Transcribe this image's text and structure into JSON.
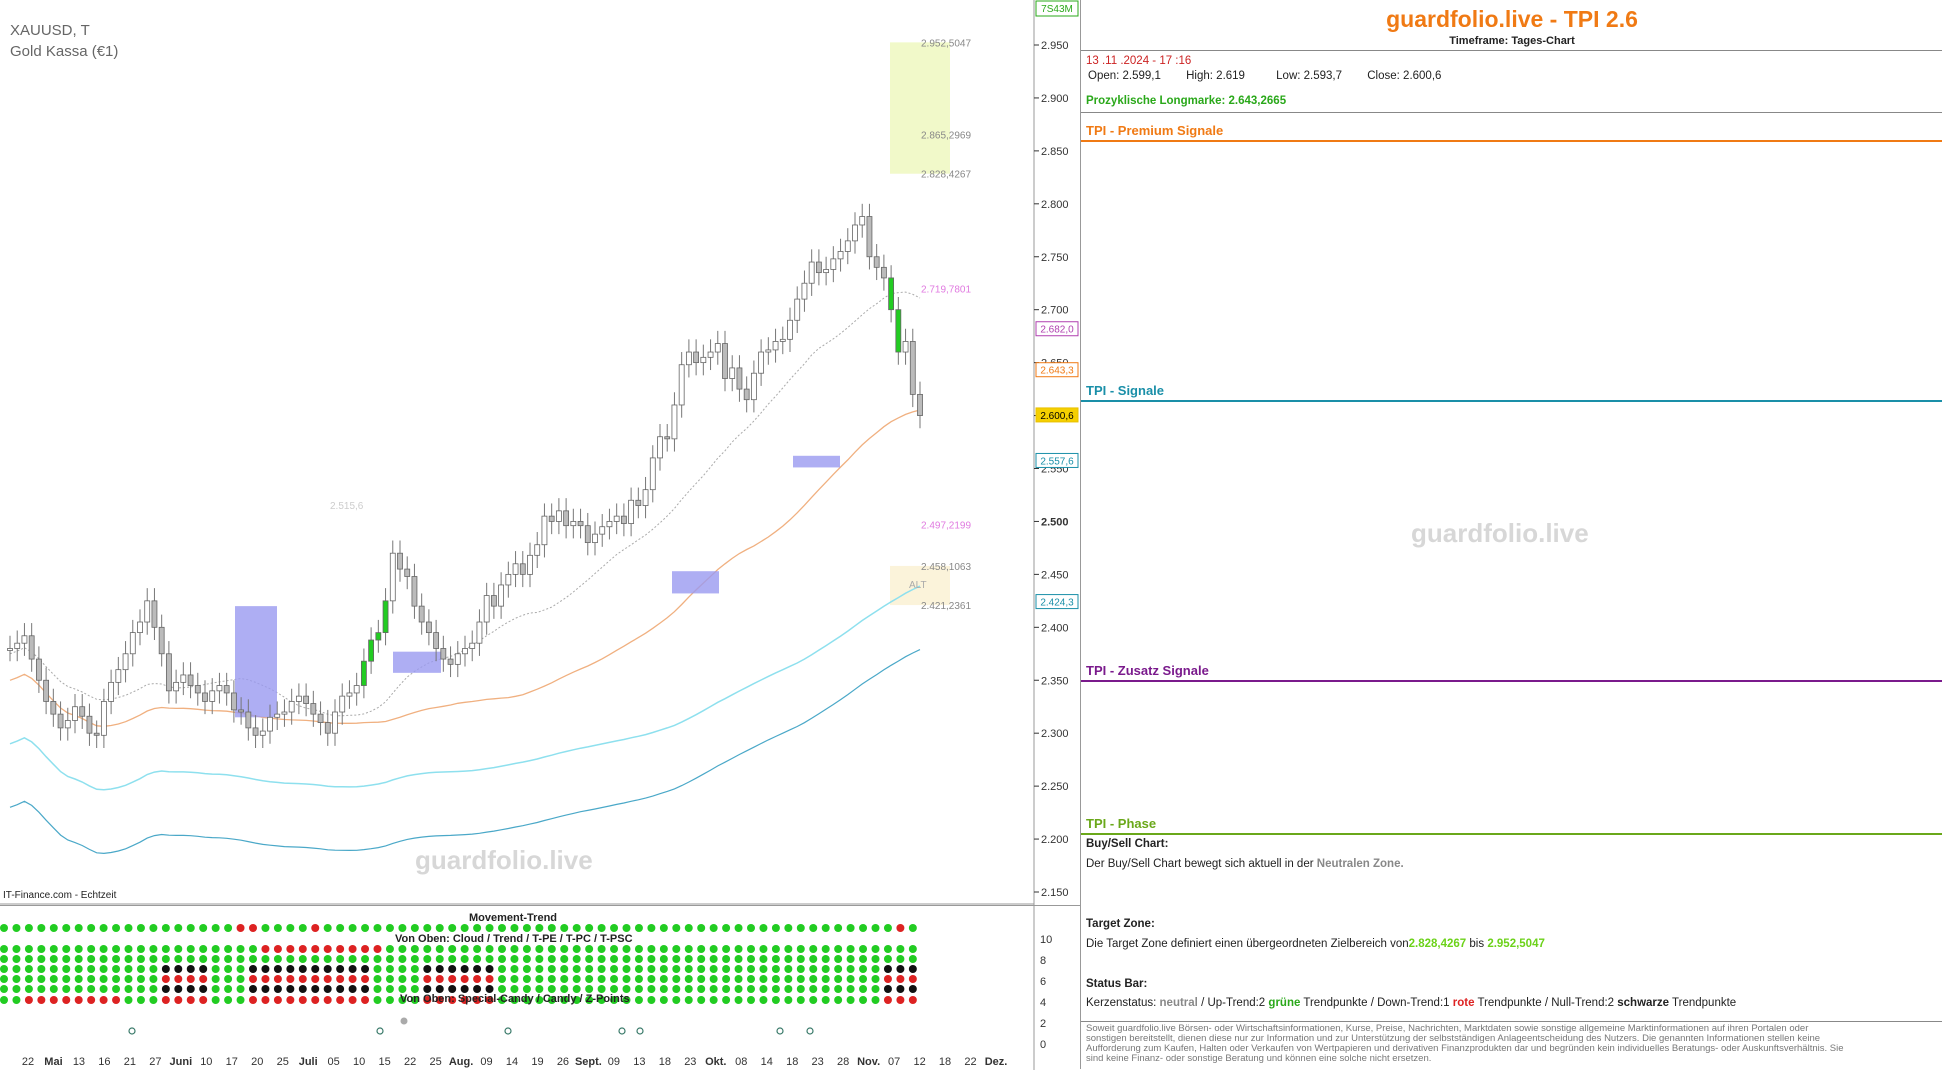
{
  "symbol": {
    "ticker": "XAUUSD, T",
    "name": "Gold Kassa (€1)"
  },
  "source": "IT-Finance.com - Echtzeit",
  "watermark": "guardfolio.live",
  "corner_tag": "7S43M",
  "panel": {
    "title": "guardfolio.live - TPI 2.6",
    "timeframe": "Timeframe: Tages-Chart",
    "datetime": "13 .11 .2024  - 17 :16",
    "open_label": "Open:",
    "open": "2.599,1",
    "high_label": "High:",
    "high": "2.619",
    "low_label": "Low:",
    "low": "2.593,7",
    "close_label": "Close:",
    "close": "2.600,6",
    "longmark_label": "Prozyklische Longmarke:",
    "longmark": "2.643,2665",
    "premium": "TPI - Premium Signale",
    "signale": "TPI - Signale",
    "zusatz": "TPI - Zusatz Signale",
    "phase": "TPI - Phase",
    "buysell_title": "Buy/Sell Chart:",
    "buysell_text": "Der Buy/Sell Chart bewegt sich aktuell in der",
    "buysell_zone": "Neutralen Zone.",
    "target_title": "Target Zone:",
    "target_text": "Die Target Zone definiert einen übergeordneten Zielbereich von",
    "target_from": "2.828,4267",
    "target_bis": "bis",
    "target_to": "2.952,5047",
    "status_title": "Status Bar:",
    "status_a": "Kerzenstatus:",
    "status_neutral": "neutral",
    "status_b": "/ Up-Trend:2",
    "status_gruene": "grüne",
    "status_c": "Trendpunkte  / Down-Trend:1",
    "status_rote": "rote",
    "status_d": "Trendpunkte / Null-Trend:2",
    "status_schwarze": "schwarze",
    "status_e": "Trendpunkte",
    "disclaimer": "Soweit guardfolio.live Börsen- oder Wirtschaftsinformationen, Kurse, Preise, Nachrichten, Marktdaten sowie sonstige allgemeine Marktinformationen auf ihren Portalen oder sonstigen bereitstellt, dienen diese nur zur Information und zur Unterstützung der selbstständigen Anlageentscheidung des Nutzers. Die genannten Informationen stellen keine Aufforderung zum Kaufen, Halten oder Verkaufen von Wertpapieren und derivativen Finanzprodukten dar und begründen kein individuelles Beratungs- oder Auskunftsverhältnis. Sie sind keine Finanz- oder sonstige Beratung und können eine solche nicht ersetzen."
  },
  "colors": {
    "orange": "#f07a14",
    "teal": "#1a8fa8",
    "purple": "#7a1a8c",
    "olive": "#6aa81a",
    "green": "#22cc22",
    "red": "#dd2222"
  },
  "indicator": {
    "movement_title": "Movement-Trend",
    "von_oben_1": "Von Oben: Cloud / Trend / T-PE / T-PC / T-PSC",
    "von_oben_2": "Von Oben: Special-Candy / Candy / Z-Points",
    "y_ticks": [
      "10",
      "8",
      "6",
      "4",
      "2",
      "0"
    ]
  },
  "chart_data": {
    "type": "candlestick",
    "y_ticks": [
      "2.150",
      "2.200",
      "2.250",
      "2.300",
      "2.350",
      "2.400",
      "2.450",
      "2.500",
      "2.550",
      "2.600",
      "2.650",
      "2.700",
      "2.750",
      "2.800",
      "2.850",
      "2.900",
      "2.950"
    ],
    "ylim": [
      2130,
      2960
    ],
    "x_labels": [
      "22",
      "Mai",
      "13",
      "16",
      "21",
      "27",
      "Juni",
      "10",
      "17",
      "20",
      "25",
      "Juli",
      "05",
      "10",
      "15",
      "22",
      "25",
      "Aug.",
      "09",
      "14",
      "19",
      "26",
      "Sept.",
      "09",
      "13",
      "18",
      "23",
      "Okt.",
      "08",
      "14",
      "18",
      "23",
      "28",
      "Nov.",
      "07",
      "12",
      "18",
      "22",
      "Dez."
    ],
    "price_boxes": [
      {
        "label": "2.682,0",
        "value": 2682,
        "color": "#b040b0"
      },
      {
        "label": "2.643,3",
        "value": 2643.3,
        "color": "#f07a14"
      },
      {
        "label": "2.600,6",
        "value": 2600.6,
        "color": "#e8c000"
      },
      {
        "label": "2.557,6",
        "value": 2557.6,
        "color": "#1a8fa8"
      },
      {
        "label": "2.424,3",
        "value": 2424.3,
        "color": "#1a8fa8"
      }
    ],
    "annotations": [
      {
        "text": "2.952,5047",
        "value": 2952.5047
      },
      {
        "text": "2.865,2969",
        "value": 2865.2969
      },
      {
        "text": "2.828,4267",
        "value": 2828.4267
      },
      {
        "text": "2.719,7801",
        "value": 2719.7801
      },
      {
        "text": "2.497,2199",
        "value": 2497.2199
      },
      {
        "text": "2.458,1063",
        "value": 2458.1063
      },
      {
        "text": "2.421,2361",
        "value": 2421.2361
      },
      {
        "text": "2.515,6",
        "value": 2515.6
      },
      {
        "text": "ALT",
        "value": 2441
      }
    ],
    "closes": [
      2380,
      2385,
      2392,
      2370,
      2350,
      2330,
      2318,
      2305,
      2312,
      2325,
      2316,
      2300,
      2298,
      2330,
      2348,
      2360,
      2375,
      2395,
      2405,
      2425,
      2400,
      2375,
      2340,
      2348,
      2355,
      2345,
      2338,
      2330,
      2340,
      2345,
      2338,
      2322,
      2320,
      2305,
      2298,
      2302,
      2315,
      2318,
      2320,
      2330,
      2335,
      2328,
      2318,
      2310,
      2300,
      2320,
      2335,
      2338,
      2345,
      2368,
      2388,
      2395,
      2425,
      2470,
      2455,
      2448,
      2420,
      2405,
      2395,
      2380,
      2370,
      2365,
      2375,
      2380,
      2385,
      2405,
      2430,
      2420,
      2440,
      2450,
      2460,
      2450,
      2468,
      2478,
      2505,
      2500,
      2510,
      2496,
      2500,
      2496,
      2480,
      2488,
      2495,
      2500,
      2505,
      2498,
      2520,
      2515,
      2530,
      2560,
      2580,
      2578,
      2610,
      2648,
      2660,
      2650,
      2655,
      2660,
      2668,
      2635,
      2645,
      2625,
      2615,
      2640,
      2660,
      2662,
      2670,
      2672,
      2690,
      2710,
      2725,
      2745,
      2735,
      2738,
      2748,
      2755,
      2765,
      2780,
      2788,
      2750,
      2740,
      2730,
      2700,
      2660,
      2670,
      2620,
      2600
    ],
    "target_zone": [
      2828.4267,
      2952.5047
    ]
  }
}
